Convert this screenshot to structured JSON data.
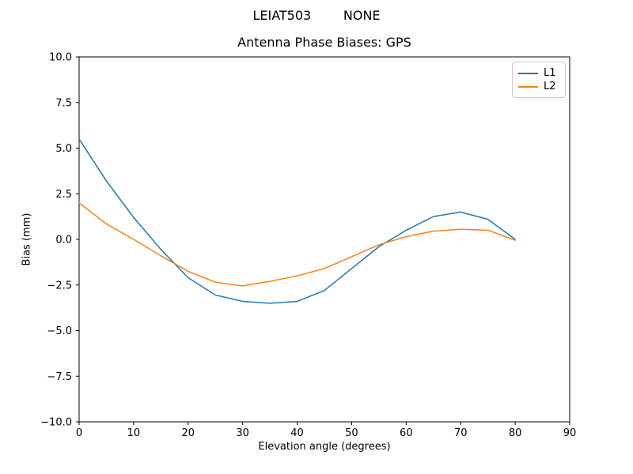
{
  "figure": {
    "suptitle": "LEIAT503        NONE",
    "background_color": "#ffffff",
    "text_color": "#000000"
  },
  "chart_data": {
    "type": "line",
    "title": "Antenna Phase Biases: GPS",
    "xlabel": "Elevation angle (degrees)",
    "ylabel": "Bias (mm)",
    "xlim": [
      0,
      90
    ],
    "ylim": [
      -10,
      10
    ],
    "grid": false,
    "legend_position": "upper right",
    "x": [
      0,
      5,
      10,
      15,
      20,
      25,
      30,
      35,
      40,
      45,
      50,
      55,
      60,
      65,
      70,
      75,
      80
    ],
    "series": [
      {
        "name": "L1",
        "color": "#1f77b4",
        "values": [
          5.5,
          3.2,
          1.2,
          -0.55,
          -2.1,
          -3.05,
          -3.4,
          -3.5,
          -3.4,
          -2.8,
          -1.6,
          -0.4,
          0.5,
          1.25,
          1.5,
          1.1,
          0.0
        ]
      },
      {
        "name": "L2",
        "color": "#ff7f0e",
        "values": [
          2.0,
          0.85,
          0.0,
          -0.9,
          -1.75,
          -2.35,
          -2.55,
          -2.3,
          -2.0,
          -1.6,
          -0.95,
          -0.3,
          0.15,
          0.45,
          0.55,
          0.5,
          -0.05
        ]
      }
    ],
    "xticks": {
      "values": [
        0,
        10,
        20,
        30,
        40,
        50,
        60,
        70,
        80,
        90
      ],
      "labels": [
        "0",
        "10",
        "20",
        "30",
        "40",
        "50",
        "60",
        "70",
        "80",
        "90"
      ]
    },
    "yticks": {
      "values": [
        -10,
        -7.5,
        -5,
        -2.5,
        0,
        2.5,
        5,
        7.5,
        10
      ],
      "labels": [
        "−10.0",
        "−7.5",
        "−5.0",
        "−2.5",
        "0.0",
        "2.5",
        "5.0",
        "7.5",
        "10.0"
      ]
    },
    "axes_color": "#000000",
    "line_width": 1.5
  }
}
